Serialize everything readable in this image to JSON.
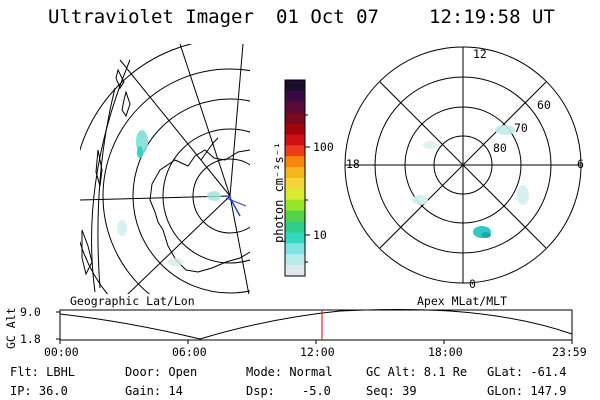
{
  "header": {
    "instrument": "Ultraviolet Imager",
    "date": "01 Oct 07",
    "time": "12:19:58 UT"
  },
  "colorbar": {
    "label": "photon cm⁻²s⁻¹",
    "ticks": [
      "100",
      "10"
    ],
    "colors": [
      "#1b0f2e",
      "#3a0a46",
      "#5a0a3a",
      "#7a0a1e",
      "#a4050a",
      "#cf1014",
      "#ee3d1c",
      "#f9860e",
      "#f7b51c",
      "#f5d63a",
      "#d7ec2c",
      "#94e42c",
      "#55d348",
      "#2dcf88",
      "#30d8bf",
      "#7fe3e2",
      "#b8eceb",
      "#dde9ec"
    ]
  },
  "left_map": {
    "caption": "Geographic Lat/Lon"
  },
  "right_map": {
    "caption": "Apex  MLat/MLT",
    "mlt_labels": {
      "top": "12",
      "left": "18",
      "right": "6",
      "bottom": "0"
    },
    "lat_labels": [
      "60",
      "70",
      "80"
    ]
  },
  "gc_plot": {
    "ylabel": "GC Alt",
    "y_ticks": [
      "9.0",
      "1.8"
    ],
    "x_ticks": [
      "00:00",
      "06:00",
      "12:00",
      "18:00",
      "23:59"
    ],
    "marker_time": "12:19:58"
  },
  "footer": {
    "flt": "Flt: LBHL",
    "door": "Door: Open",
    "mode": "Mode: Normal",
    "gcalt": "GC Alt: 8.1 Re",
    "glat": "GLat: -61.4",
    "ip": "IP: 36.0",
    "gain": "Gain: 14",
    "dsp_label": "Dsp:",
    "dsp_value": "-5.0",
    "seq": "Seq: 39",
    "glon": "GLon: 147.9"
  }
}
